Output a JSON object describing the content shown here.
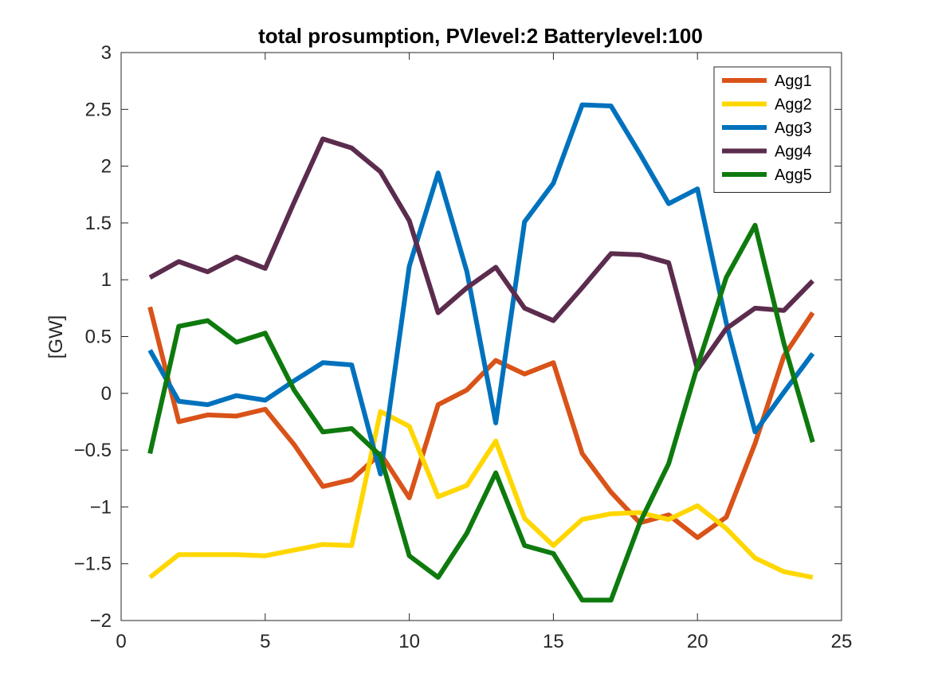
{
  "chart_data": {
    "type": "line",
    "title": "total prosumption, PVlevel:2 Batterylevel:100",
    "xlabel": "",
    "ylabel": "[GW]",
    "xlim": [
      0,
      25
    ],
    "ylim": [
      -2,
      3
    ],
    "x_ticks": [
      0,
      5,
      10,
      15,
      20,
      25
    ],
    "y_ticks": [
      -2,
      -1.5,
      -1,
      -0.5,
      0,
      0.5,
      1,
      1.5,
      2,
      2.5,
      3
    ],
    "x_tick_labels": [
      "0",
      "5",
      "10",
      "15",
      "20",
      "25"
    ],
    "y_tick_labels": [
      "−2",
      "−1.5",
      "−1",
      "−0.5",
      "0",
      "0.5",
      "1",
      "1.5",
      "2",
      "2.5",
      "3"
    ],
    "legend_position": "top-right",
    "grid": false,
    "x": [
      1,
      2,
      3,
      4,
      5,
      6,
      7,
      8,
      9,
      10,
      11,
      12,
      13,
      14,
      15,
      16,
      17,
      18,
      19,
      20,
      21,
      22,
      23,
      24
    ],
    "series": [
      {
        "name": "Agg1",
        "color": "#D95319",
        "values": [
          0.76,
          -0.25,
          -0.19,
          -0.2,
          -0.14,
          -0.45,
          -0.82,
          -0.76,
          -0.53,
          -0.92,
          -0.1,
          0.03,
          0.29,
          0.17,
          0.27,
          -0.53,
          -0.87,
          -1.14,
          -1.07,
          -1.27,
          -1.09,
          -0.44,
          0.33,
          0.71
        ]
      },
      {
        "name": "Agg2",
        "color": "#FFD700",
        "values": [
          -1.62,
          -1.42,
          -1.42,
          -1.42,
          -1.43,
          -1.38,
          -1.33,
          -1.34,
          -0.16,
          -0.29,
          -0.91,
          -0.81,
          -0.42,
          -1.1,
          -1.34,
          -1.11,
          -1.06,
          -1.05,
          -1.11,
          -0.99,
          -1.19,
          -1.45,
          -1.57,
          -1.62
        ]
      },
      {
        "name": "Agg3",
        "color": "#0072BD",
        "values": [
          0.38,
          -0.07,
          -0.1,
          -0.02,
          -0.06,
          0.11,
          0.27,
          0.25,
          -0.71,
          1.12,
          1.94,
          1.07,
          -0.26,
          1.51,
          1.85,
          2.54,
          2.53,
          2.11,
          1.67,
          1.8,
          0.62,
          -0.34,
          0.01,
          0.35
        ]
      },
      {
        "name": "Agg4",
        "color": "#5B2C4E",
        "values": [
          1.02,
          1.16,
          1.07,
          1.2,
          1.1,
          1.68,
          2.24,
          2.16,
          1.95,
          1.52,
          0.71,
          0.93,
          1.11,
          0.75,
          0.64,
          0.93,
          1.23,
          1.22,
          1.15,
          0.21,
          0.57,
          0.75,
          0.73,
          0.99
        ]
      },
      {
        "name": "Agg5",
        "color": "#0E7A0E",
        "values": [
          -0.53,
          0.59,
          0.64,
          0.45,
          0.53,
          0.03,
          -0.34,
          -0.31,
          -0.55,
          -1.43,
          -1.62,
          -1.23,
          -0.7,
          -1.34,
          -1.41,
          -1.82,
          -1.82,
          -1.14,
          -0.62,
          0.24,
          1.02,
          1.48,
          0.44,
          -0.43
        ]
      }
    ]
  }
}
